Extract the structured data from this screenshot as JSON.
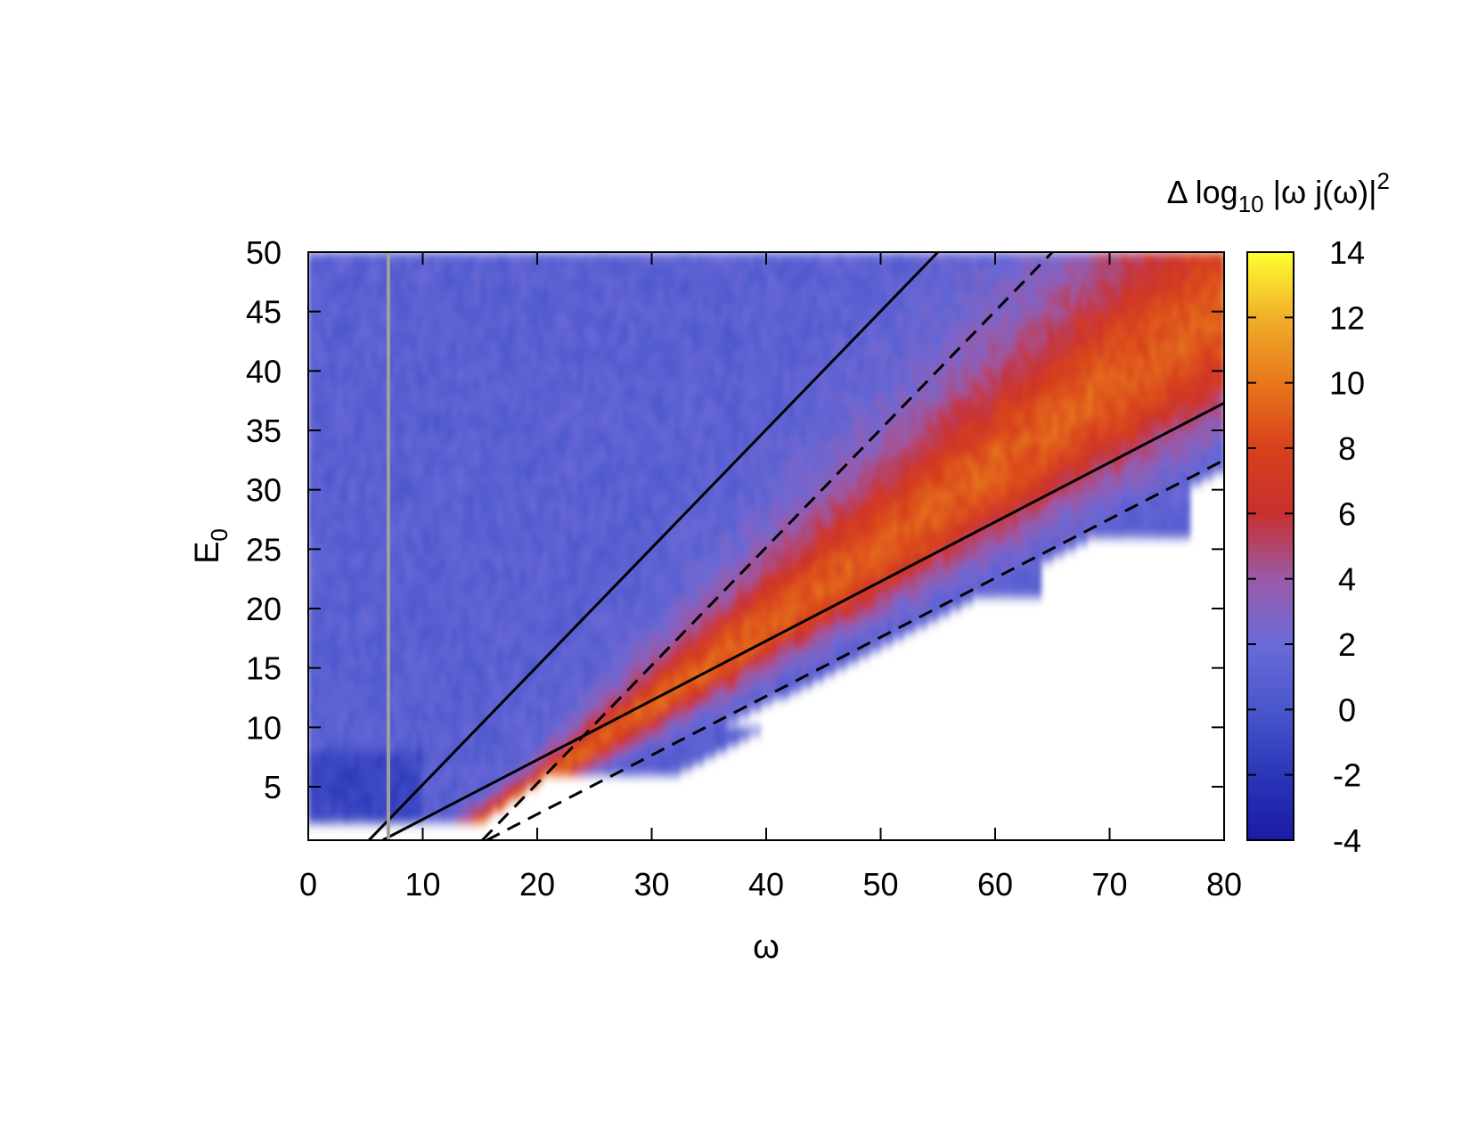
{
  "chart_data": {
    "type": "heatmap",
    "xlabel": "ω",
    "ylabel_main": "E",
    "ylabel_sub": "0",
    "colorbar_title": {
      "prefix": "Δ log",
      "sub": "10",
      "middle": " |ω j(ω)|",
      "sup": "2"
    },
    "xlim": [
      0,
      80
    ],
    "ylim": [
      0.5,
      50
    ],
    "clim": [
      -4,
      14
    ],
    "x_ticks": [
      0,
      10,
      20,
      30,
      40,
      50,
      60,
      70,
      80
    ],
    "y_ticks": [
      5,
      10,
      15,
      20,
      25,
      30,
      35,
      40,
      45,
      50
    ],
    "c_ticks": [
      -4,
      -2,
      0,
      2,
      4,
      6,
      8,
      10,
      12,
      14
    ],
    "x_tick_labels": [
      "0",
      "10",
      "20",
      "30",
      "40",
      "50",
      "60",
      "70",
      "80"
    ],
    "y_tick_labels": [
      "5",
      "10",
      "15",
      "20",
      "25",
      "30",
      "35",
      "40",
      "45",
      "50"
    ],
    "c_tick_labels": [
      "-4",
      "-2",
      "0",
      "2",
      "4",
      "6",
      "8",
      "10",
      "12",
      "14"
    ],
    "colormap": [
      "#1a1aa6",
      "#2b36b8",
      "#4a56cc",
      "#6a6ad8",
      "#9a5aa8",
      "#c8302e",
      "#d8401c",
      "#e8781c",
      "#f0b02a",
      "#ffff30"
    ],
    "band_peak_value": 9,
    "background_value": 1,
    "lines": [
      {
        "style": "solid",
        "color": "#000000",
        "x": [
          5.3,
          55
        ],
        "y": [
          0.5,
          50
        ]
      },
      {
        "style": "solid",
        "color": "#000000",
        "x": [
          6.5,
          80
        ],
        "y": [
          0.5,
          37.3
        ]
      },
      {
        "style": "dashed",
        "color": "#000000",
        "x": [
          15.2,
          65
        ],
        "y": [
          0.5,
          50
        ]
      },
      {
        "style": "dashed",
        "color": "#000000",
        "x": [
          15.6,
          80
        ],
        "y": [
          0.5,
          32.5
        ]
      },
      {
        "style": "solid",
        "color": "#a0a0a0",
        "x": [
          7,
          7
        ],
        "y": [
          0.5,
          50
        ]
      }
    ]
  }
}
